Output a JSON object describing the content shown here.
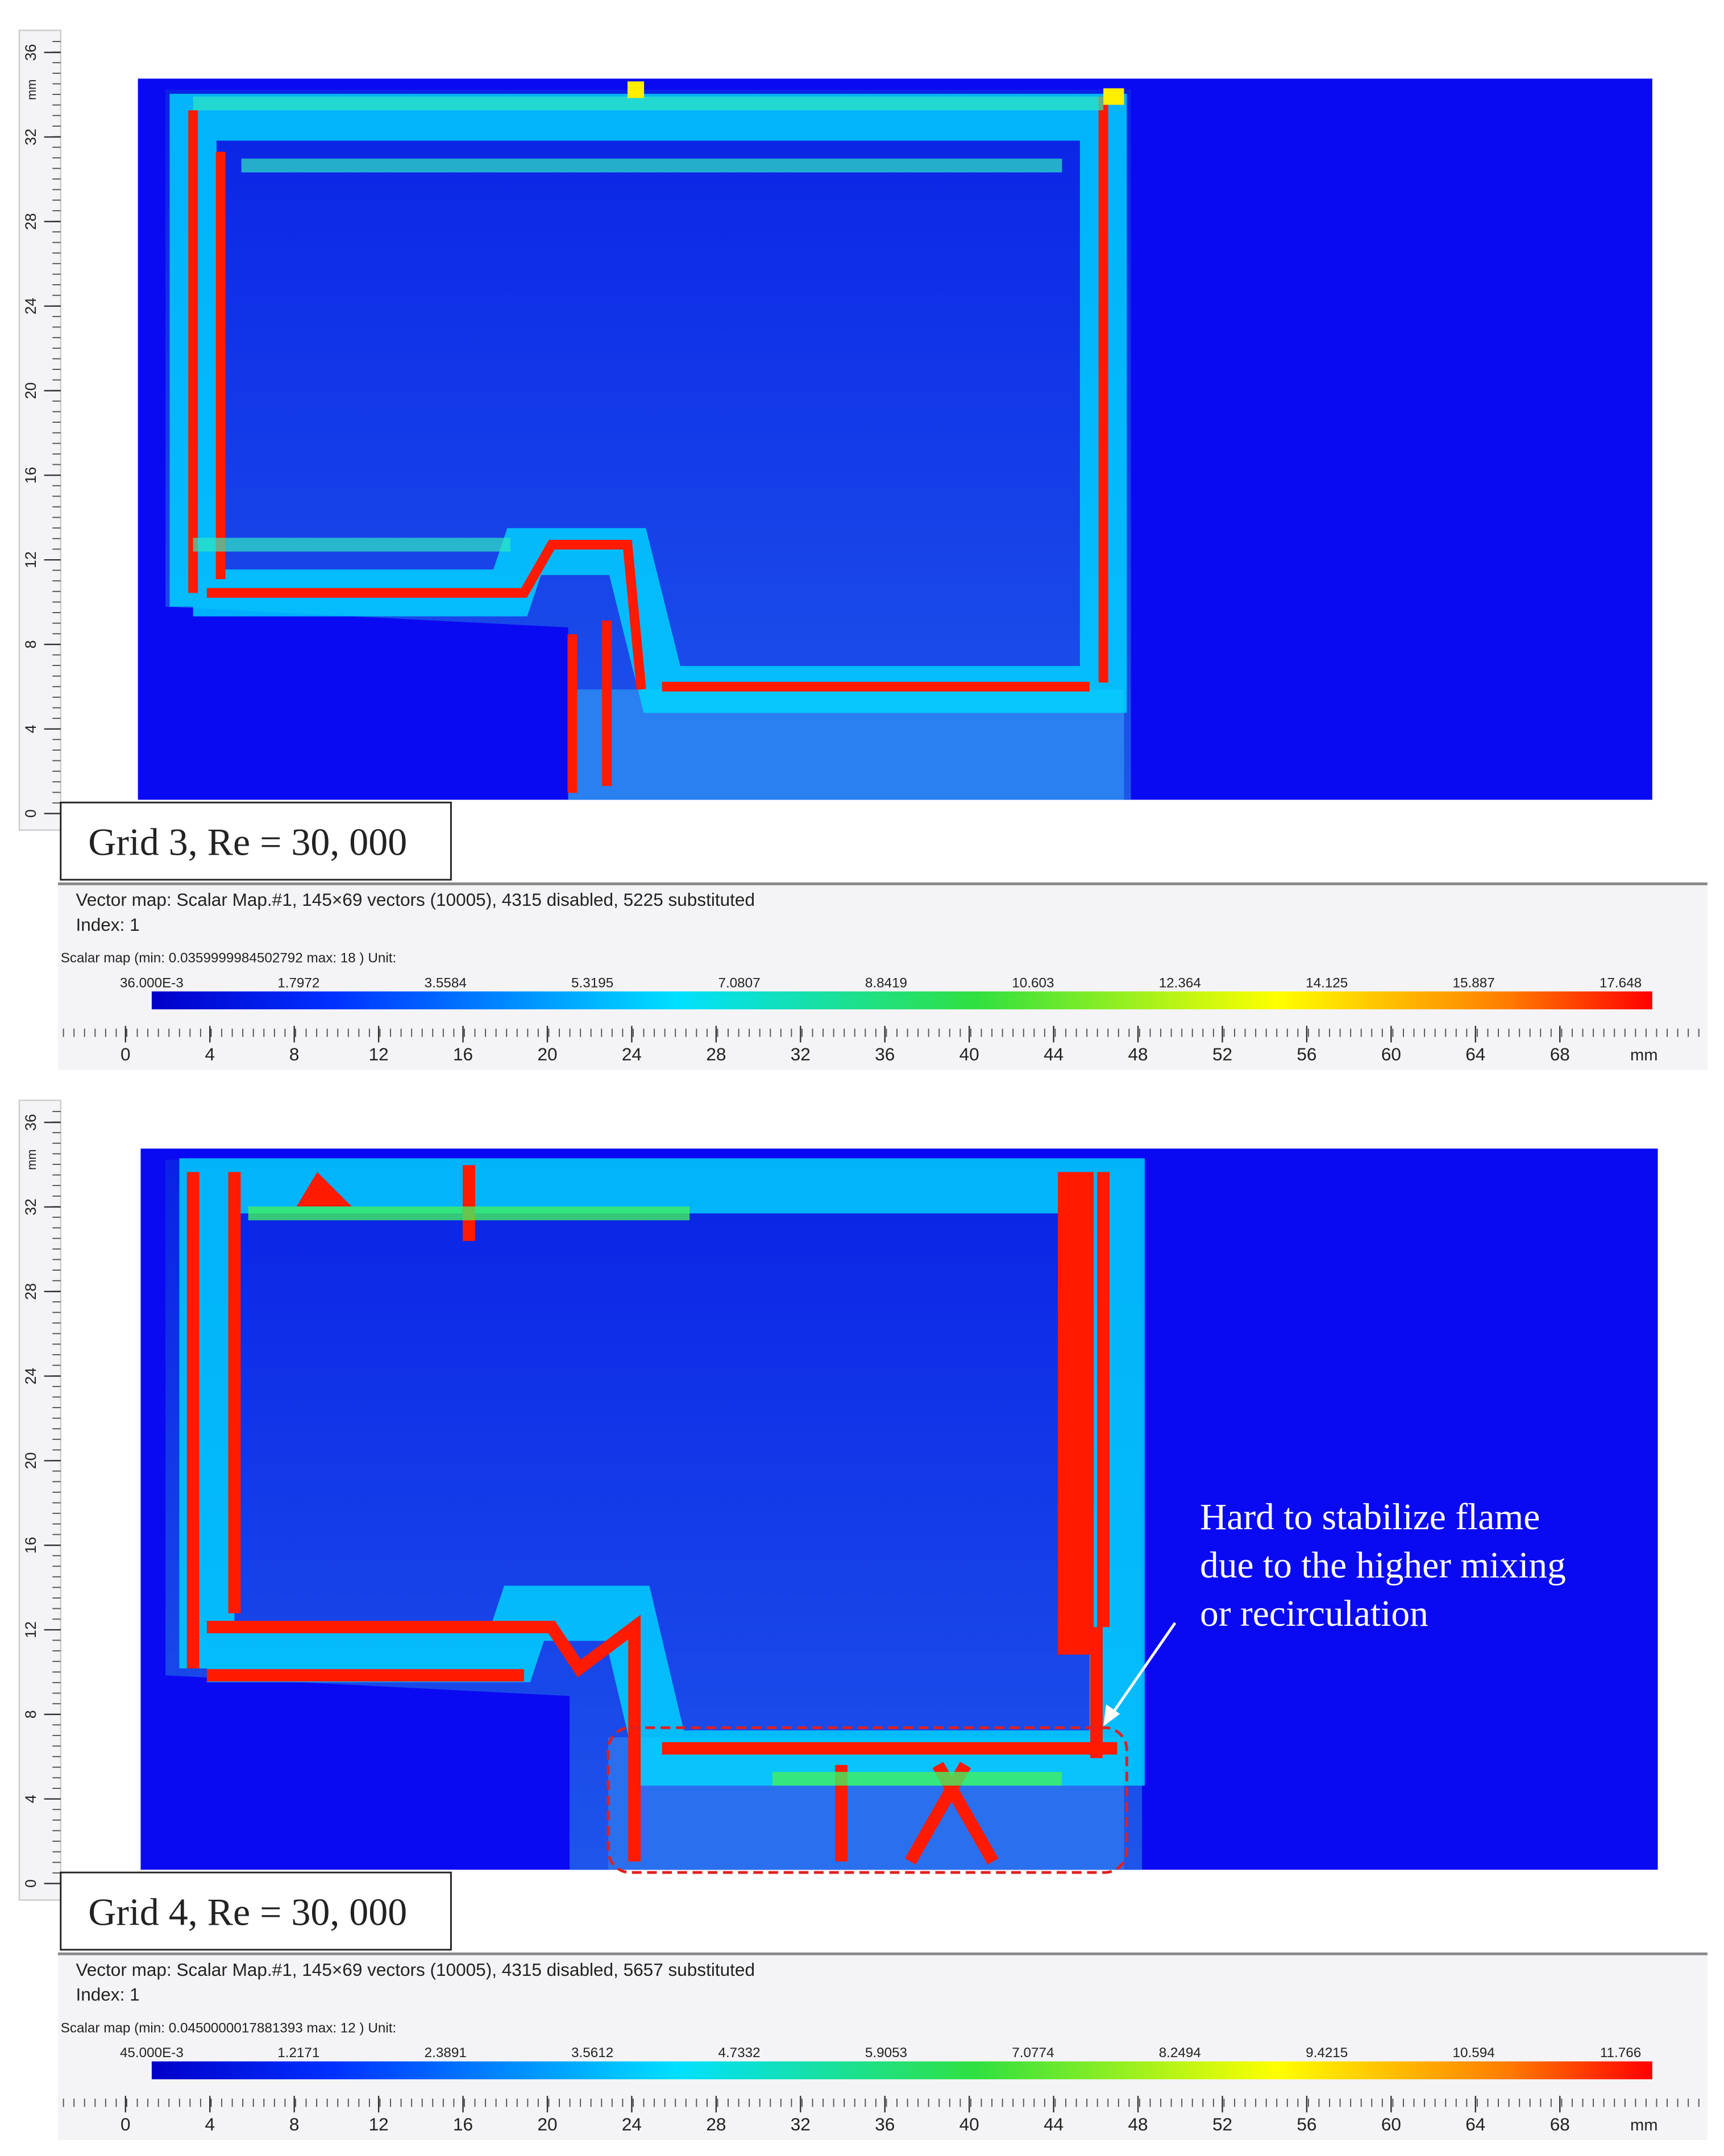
{
  "panels": [
    {
      "label": "Grid 3, Re = 30, 000",
      "vector_info": "Vector map: Scalar Map.#1, 145×69 vectors (10005), 4315 disabled, 5225 substituted",
      "index": "Index: 1",
      "scalar_info": "Scalar map (min: 0.0359999984502792 max: 18 ) Unit:",
      "colorbar_labels": [
        "36.000E-3",
        "1.7972",
        "3.5584",
        "5.3195",
        "7.0807",
        "8.8419",
        "10.603",
        "12.364",
        "14.125",
        "15.887",
        "17.648"
      ],
      "x_ruler": {
        "ticks": [
          0,
          4,
          8,
          12,
          16,
          20,
          24,
          28,
          32,
          36,
          40,
          44,
          48,
          52,
          56,
          60,
          64,
          68
        ],
        "unit": "mm"
      },
      "y_ruler": {
        "ticks": [
          0,
          4,
          8,
          12,
          16,
          20,
          24,
          28,
          32,
          36
        ],
        "unit": "mm"
      }
    },
    {
      "label": "Grid 4, Re = 30, 000",
      "vector_info": "Vector map: Scalar Map.#1, 145×69 vectors (10005), 4315 disabled, 5657 substituted",
      "index": "Index: 1",
      "scalar_info": "Scalar map (min: 0.0450000017881393 max: 12 ) Unit:",
      "colorbar_labels": [
        "45.000E-3",
        "1.2171",
        "2.3891",
        "3.5612",
        "4.7332",
        "5.9053",
        "7.0774",
        "8.2494",
        "9.4215",
        "10.594",
        "11.766"
      ],
      "x_ruler": {
        "ticks": [
          0,
          4,
          8,
          12,
          16,
          20,
          24,
          28,
          32,
          36,
          40,
          44,
          48,
          52,
          56,
          60,
          64,
          68
        ],
        "unit": "mm"
      },
      "y_ruler": {
        "ticks": [
          0,
          4,
          8,
          12,
          16,
          20,
          24,
          28,
          32,
          36
        ],
        "unit": "mm"
      },
      "annotation": [
        "Hard to stabilize flame",
        "due to the higher mixing",
        "or recirculation"
      ]
    }
  ]
}
